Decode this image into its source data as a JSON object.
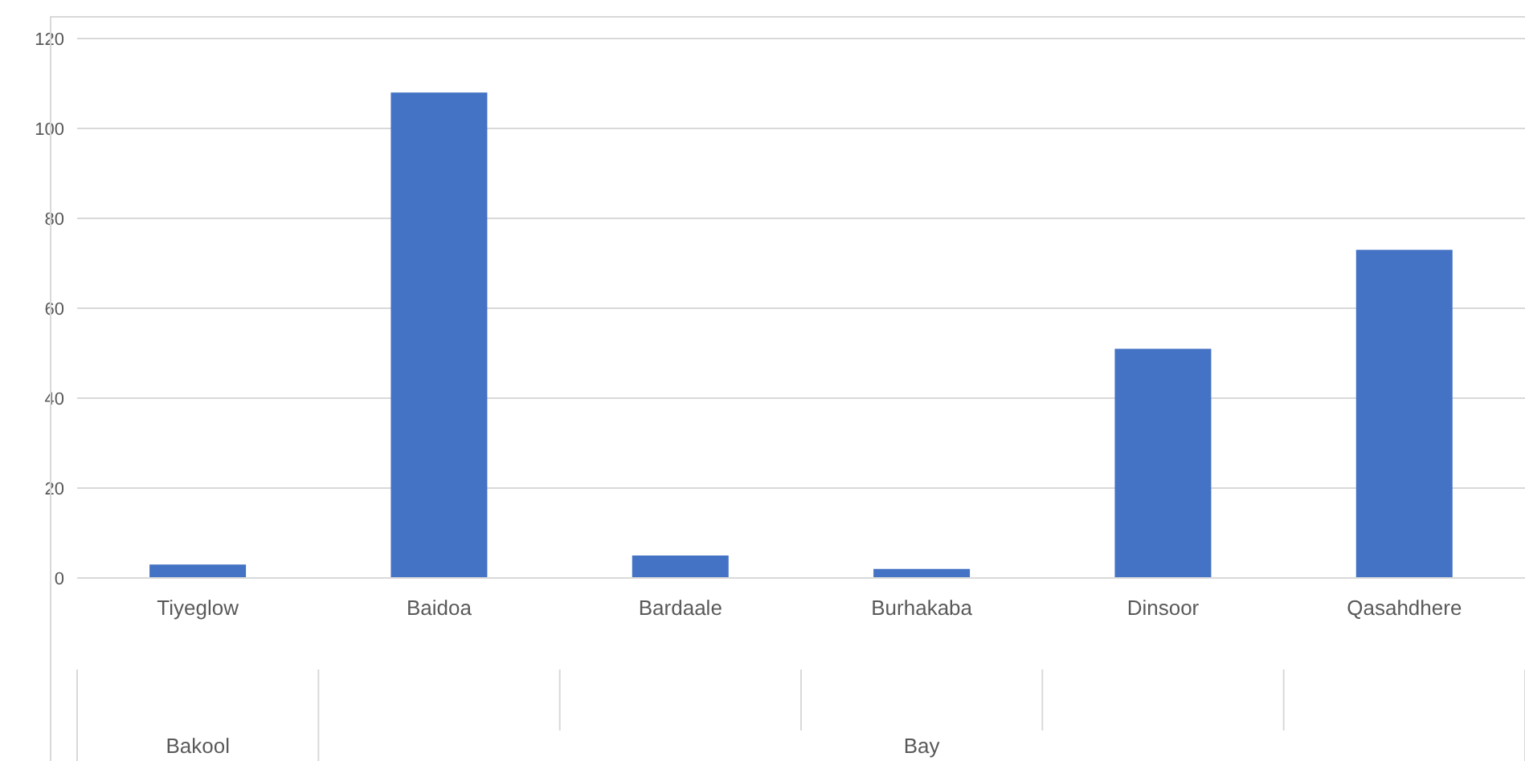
{
  "chart_data": {
    "type": "bar",
    "categories": [
      "Tiyeglow",
      "Baidoa",
      "Bardaale",
      "Burhakaba",
      "Dinsoor",
      "Qasahdhere"
    ],
    "values": [
      3,
      108,
      5,
      2,
      51,
      73
    ],
    "color": "#4472c4",
    "ylim": [
      0,
      120
    ],
    "yticks": [
      0,
      20,
      40,
      60,
      80,
      100,
      120
    ],
    "grid": "y",
    "annotations": [
      "Bakool",
      "Bay"
    ]
  }
}
